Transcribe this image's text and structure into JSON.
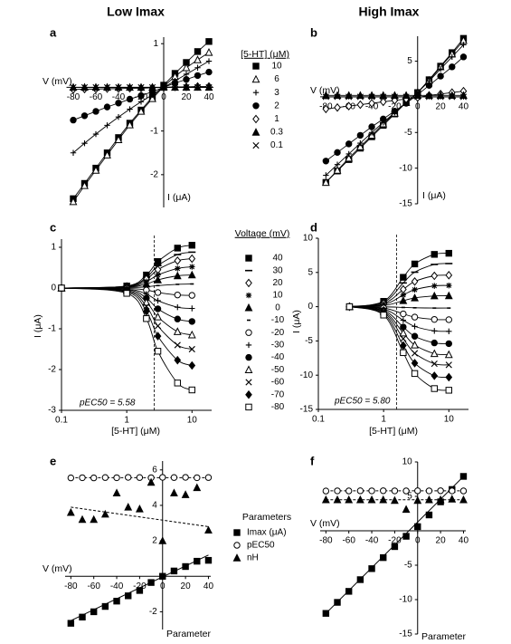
{
  "column_titles": [
    "Low Imax",
    "High Imax"
  ],
  "chart_data": [
    {
      "type": "line",
      "label": "a",
      "axes": "origin",
      "color": "#000000",
      "line_shape": "straight",
      "xlabel": "V (mV)",
      "ylabel": "I (μA)",
      "legend_title": "[5-HT] (μM)",
      "x": [
        -80,
        -70,
        -60,
        -50,
        -40,
        -30,
        -20,
        -10,
        0,
        10,
        20,
        30,
        40
      ],
      "xlim": [
        -86,
        44
      ],
      "ylim": [
        -2.75,
        1.15
      ],
      "xticks": [
        -80,
        -60,
        -40,
        -20,
        0,
        20,
        40
      ],
      "yticks": [
        1,
        -1,
        -2
      ],
      "series": [
        {
          "name": "10",
          "marker": "square-filled",
          "values": [
            -2.55,
            -2.2,
            -1.85,
            -1.5,
            -1.15,
            -0.82,
            -0.52,
            -0.22,
            0.05,
            0.32,
            0.57,
            0.82,
            1.05
          ]
        },
        {
          "name": "6",
          "marker": "triangle-open",
          "values": [
            -2.62,
            -2.25,
            -1.9,
            -1.55,
            -1.2,
            -0.86,
            -0.55,
            -0.26,
            0.02,
            0.25,
            0.45,
            0.63,
            0.8
          ]
        },
        {
          "name": "3",
          "marker": "plus",
          "values": [
            -1.5,
            -1.28,
            -1.07,
            -0.87,
            -0.68,
            -0.5,
            -0.33,
            -0.17,
            0.0,
            0.15,
            0.3,
            0.45,
            0.6
          ]
        },
        {
          "name": "2",
          "marker": "circle-filled",
          "values": [
            -0.75,
            -0.65,
            -0.55,
            -0.45,
            -0.36,
            -0.27,
            -0.19,
            -0.1,
            0.0,
            0.1,
            0.18,
            0.27,
            0.35
          ]
        },
        {
          "name": "1",
          "marker": "diamond-open",
          "values": [
            -0.05,
            -0.04,
            -0.04,
            -0.03,
            -0.03,
            -0.02,
            -0.02,
            -0.01,
            0.0,
            0.01,
            0.01,
            0.02,
            0.02
          ]
        },
        {
          "name": "0.3",
          "marker": "triangle-filled",
          "values": [
            0,
            0,
            0,
            0,
            0,
            0,
            0,
            0,
            0,
            0,
            0,
            0,
            0
          ]
        },
        {
          "name": "0.1",
          "marker": "x",
          "values": [
            0,
            0,
            0,
            0,
            0,
            0,
            0,
            0,
            0,
            0,
            0,
            0,
            0
          ]
        }
      ]
    },
    {
      "type": "line",
      "label": "b",
      "axes": "origin",
      "color": "#000000",
      "line_shape": "straight",
      "xlabel": "V (mV)",
      "ylabel": "I (μA)",
      "x": [
        -80,
        -70,
        -60,
        -50,
        -40,
        -30,
        -20,
        -10,
        0,
        10,
        20,
        30,
        40
      ],
      "xlim": [
        -85,
        42
      ],
      "ylim": [
        -15,
        8.5
      ],
      "xticks": [
        -80,
        -60,
        -40,
        -20,
        0,
        20,
        40
      ],
      "yticks": [
        5,
        -5,
        -10,
        -15
      ],
      "series": [
        {
          "marker": "square-filled",
          "values": [
            -12,
            -10.4,
            -8.8,
            -7.2,
            -5.6,
            -4.0,
            -2.4,
            -0.8,
            0.6,
            2.4,
            4.3,
            6.2,
            8.2
          ]
        },
        {
          "marker": "triangle-open",
          "values": [
            -12,
            -10.3,
            -8.6,
            -7.0,
            -5.4,
            -3.8,
            -2.3,
            -0.8,
            0.6,
            2.3,
            4.2,
            6.0,
            7.9
          ]
        },
        {
          "marker": "plus",
          "values": [
            -11,
            -9.5,
            -8.0,
            -6.5,
            -5.0,
            -3.6,
            -2.2,
            -0.8,
            0.6,
            2.2,
            3.9,
            5.6,
            7.3
          ]
        },
        {
          "marker": "circle-filled",
          "values": [
            -9,
            -7.8,
            -6.6,
            -5.4,
            -4.2,
            -3.1,
            -2.0,
            -0.9,
            0.3,
            1.6,
            2.9,
            4.2,
            5.6
          ]
        },
        {
          "marker": "diamond-open",
          "values": [
            -1.7,
            -1.5,
            -1.3,
            -1.1,
            -0.9,
            -0.7,
            -0.5,
            -0.3,
            -0.1,
            0.2,
            0.4,
            0.6,
            0.8
          ]
        },
        {
          "marker": "triangle-filled",
          "values": [
            0.2,
            0.2,
            0.2,
            0.2,
            0.2,
            0.2,
            0.2,
            0.2,
            0.2,
            0.2,
            0.2,
            0.2,
            0.2
          ]
        },
        {
          "marker": "x",
          "values": [
            0,
            0,
            0,
            0,
            0,
            0,
            0,
            0,
            0,
            0,
            0,
            0,
            0
          ]
        }
      ]
    },
    {
      "type": "line",
      "label": "c",
      "axes": "frame",
      "xscale": "log",
      "color": "#000000",
      "line_shape": "smooth",
      "xlabel": "[5-HT] (μM)",
      "ylabel": "I (μA)",
      "legend_title": "Voltage (mV)",
      "annotation": "pEC50 = 5.58",
      "vline": 2.63,
      "x": [
        0.1,
        1,
        2,
        3,
        6,
        10
      ],
      "xlim": [
        0.1,
        20
      ],
      "ylim": [
        -3,
        1.2
      ],
      "xticks": [
        0.1,
        1,
        10
      ],
      "yticks": [
        1,
        0,
        -1,
        -2,
        -3
      ],
      "series": [
        {
          "name": "40",
          "marker": "square-filled",
          "values": [
            0,
            0.05,
            0.32,
            0.65,
            0.98,
            1.05
          ]
        },
        {
          "name": "30",
          "marker": "dash",
          "values": [
            0,
            0.04,
            0.26,
            0.55,
            0.82,
            0.88
          ]
        },
        {
          "name": "20",
          "marker": "diamond-open",
          "values": [
            0,
            0.04,
            0.22,
            0.45,
            0.67,
            0.72
          ]
        },
        {
          "name": "10",
          "marker": "star",
          "values": [
            0,
            0.03,
            0.16,
            0.32,
            0.48,
            0.52
          ]
        },
        {
          "name": "0",
          "marker": "triangle-filled",
          "values": [
            0,
            0.02,
            0.1,
            0.2,
            0.3,
            0.32
          ]
        },
        {
          "name": "-10",
          "marker": "minus",
          "values": [
            0,
            0.01,
            0.03,
            0.06,
            0.09,
            0.1
          ]
        },
        {
          "name": "-20",
          "marker": "circle-open",
          "values": [
            0,
            -0.01,
            -0.05,
            -0.11,
            -0.17,
            -0.18
          ]
        },
        {
          "name": "-30",
          "marker": "plus",
          "values": [
            0,
            -0.03,
            -0.15,
            -0.31,
            -0.47,
            -0.5
          ]
        },
        {
          "name": "-40",
          "marker": "circle-filled",
          "values": [
            0,
            -0.04,
            -0.25,
            -0.51,
            -0.76,
            -0.82
          ]
        },
        {
          "name": "-50",
          "marker": "triangle-open",
          "values": [
            0,
            -0.06,
            -0.35,
            -0.71,
            -1.07,
            -1.15
          ]
        },
        {
          "name": "-60",
          "marker": "x",
          "values": [
            0,
            -0.08,
            -0.45,
            -0.93,
            -1.4,
            -1.5
          ]
        },
        {
          "name": "-70",
          "marker": "diamond-filled",
          "values": [
            0,
            -0.1,
            -0.57,
            -1.18,
            -1.77,
            -1.9
          ]
        },
        {
          "name": "-80",
          "marker": "square-open",
          "values": [
            0,
            -0.13,
            -0.75,
            -1.55,
            -2.33,
            -2.5
          ]
        }
      ]
    },
    {
      "type": "line",
      "label": "d",
      "axes": "frame",
      "xscale": "log",
      "color": "#000000",
      "line_shape": "smooth",
      "xlabel": "[5-HT] (μM)",
      "ylabel": "I (μA)",
      "annotation": "pEC50 = 5.80",
      "vline": 1.58,
      "x": [
        0.3,
        1,
        2,
        3,
        6,
        10
      ],
      "xlim": [
        0.1,
        20
      ],
      "ylim": [
        -15,
        10
      ],
      "xticks": [
        0.1,
        1,
        10
      ],
      "yticks": [
        10,
        5,
        0,
        -5,
        -10,
        -15
      ],
      "series": [
        {
          "marker": "square-filled",
          "values": [
            0,
            0.78,
            4.29,
            6.24,
            7.64,
            7.8
          ]
        },
        {
          "marker": "dash",
          "values": [
            0,
            0.63,
            3.47,
            5.04,
            6.17,
            6.3
          ]
        },
        {
          "marker": "diamond-open",
          "values": [
            0,
            0.46,
            2.53,
            3.68,
            4.51,
            4.6
          ]
        },
        {
          "marker": "star",
          "values": [
            0,
            0.31,
            1.71,
            2.48,
            3.04,
            3.1
          ]
        },
        {
          "marker": "triangle-filled",
          "values": [
            0,
            0.16,
            0.88,
            1.28,
            1.57,
            1.6
          ]
        },
        {
          "marker": "minus",
          "values": [
            0,
            -0.02,
            -0.11,
            -0.16,
            -0.2,
            -0.2
          ]
        },
        {
          "marker": "circle-open",
          "values": [
            0,
            -0.19,
            -1.05,
            -1.52,
            -1.86,
            -1.9
          ]
        },
        {
          "marker": "plus",
          "values": [
            0,
            -0.36,
            -1.98,
            -2.88,
            -3.53,
            -3.6
          ]
        },
        {
          "marker": "circle-filled",
          "values": [
            0,
            -0.54,
            -2.97,
            -4.32,
            -5.29,
            -5.4
          ]
        },
        {
          "marker": "triangle-open",
          "values": [
            0,
            -0.7,
            -3.85,
            -5.6,
            -6.86,
            -7.0
          ]
        },
        {
          "marker": "x",
          "values": [
            0,
            -0.85,
            -4.68,
            -6.8,
            -8.33,
            -8.5
          ]
        },
        {
          "marker": "diamond-filled",
          "values": [
            0,
            -1.03,
            -5.67,
            -8.24,
            -10.09,
            -10.3
          ]
        },
        {
          "marker": "square-open",
          "values": [
            0,
            -1.22,
            -6.71,
            -9.76,
            -11.96,
            -12.2
          ]
        }
      ]
    },
    {
      "type": "scatter",
      "label": "e",
      "axes": "origin",
      "color": "#000000",
      "xlabel": "V (mV)",
      "ylabel": "Parameter",
      "legend_title": "Parameters",
      "x": [
        -80,
        -70,
        -60,
        -50,
        -40,
        -30,
        -20,
        -10,
        0,
        10,
        20,
        30,
        40
      ],
      "xlim": [
        -85,
        42
      ],
      "ylim": [
        -3,
        6.5
      ],
      "xticks": [
        -80,
        -60,
        -40,
        -20,
        0,
        20,
        40
      ],
      "yticks": [
        6,
        4,
        2,
        -2
      ],
      "series": [
        {
          "name": "Imax (μA)",
          "marker": "square-filled",
          "fit_style": "solid",
          "fit": [
            -2.5,
            1.2
          ],
          "values": [
            -2.65,
            -2.3,
            -2.0,
            -1.7,
            -1.4,
            -1.1,
            -0.8,
            -0.35,
            0.0,
            0.3,
            0.55,
            0.85,
            0.9
          ]
        },
        {
          "name": "pEC50",
          "marker": "circle-open",
          "fit_style": "dashed",
          "fit": [
            5.56,
            5.56
          ],
          "values": [
            5.55,
            5.56,
            5.55,
            5.57,
            5.56,
            5.58,
            5.57,
            5.56,
            5.58,
            5.57,
            5.58,
            5.56,
            5.57
          ]
        },
        {
          "name": "nH",
          "marker": "triangle-filled",
          "fit_style": "dashed",
          "fit": [
            3.9,
            2.8
          ],
          "values": [
            3.6,
            3.2,
            3.2,
            3.5,
            4.7,
            3.9,
            3.8,
            5.3,
            2.0,
            4.7,
            4.6,
            5.0,
            2.6
          ]
        }
      ]
    },
    {
      "type": "scatter",
      "label": "f",
      "axes": "origin",
      "color": "#000000",
      "xlabel": "V (mV)",
      "ylabel": "Parameter",
      "x": [
        -80,
        -70,
        -60,
        -50,
        -40,
        -30,
        -20,
        -10,
        0,
        10,
        20,
        30,
        40
      ],
      "xlim": [
        -85,
        42
      ],
      "ylim": [
        -15,
        10
      ],
      "xticks": [
        -80,
        -60,
        -40,
        -20,
        0,
        20,
        40
      ],
      "yticks": [
        10,
        5,
        -5,
        -10,
        -15
      ],
      "series": [
        {
          "marker": "square-filled",
          "fit_style": "solid",
          "fit": [
            -12,
            7.9
          ],
          "values": [
            -12,
            -10.4,
            -8.8,
            -7.1,
            -5.5,
            -3.9,
            -2.3,
            -0.8,
            0.6,
            2.3,
            4.2,
            6.0,
            7.9
          ]
        },
        {
          "marker": "circle-open",
          "fit_style": "dashed",
          "fit": [
            5.8,
            5.8
          ],
          "values": [
            5.78,
            5.8,
            5.79,
            5.81,
            5.8,
            5.82,
            5.8,
            5.79,
            5.81,
            5.8,
            5.82,
            5.8,
            5.79
          ]
        },
        {
          "marker": "triangle-filled",
          "fit_style": "dashed",
          "fit": [
            4.5,
            4.5
          ],
          "values": [
            4.5,
            4.5,
            4.5,
            4.5,
            4.5,
            4.5,
            4.4,
            3.1,
            4.4,
            4.5,
            4.5,
            4.6,
            4.5
          ]
        }
      ]
    }
  ]
}
